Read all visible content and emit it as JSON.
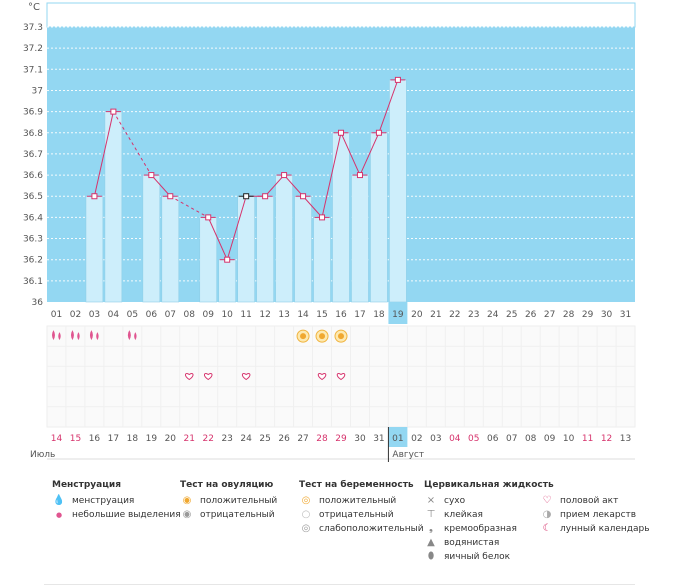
{
  "chart_data": {
    "type": "bar",
    "unit_label": "°C",
    "y_ticks": [
      "37.3",
      "37.2",
      "37.1",
      "37",
      "36.9",
      "36.8",
      "36.7",
      "36.6",
      "36.5",
      "36.4",
      "36.3",
      "36.2",
      "36.1",
      "36"
    ],
    "ylim": [
      36,
      37.3
    ],
    "cycle_days": [
      "01",
      "02",
      "03",
      "04",
      "05",
      "06",
      "07",
      "08",
      "09",
      "10",
      "11",
      "12",
      "13",
      "14",
      "15",
      "16",
      "17",
      "18",
      "19",
      "20",
      "21",
      "22",
      "23",
      "24",
      "25",
      "26",
      "27",
      "28",
      "29",
      "30",
      "31"
    ],
    "highlighted_day": "19",
    "temperatures": [
      null,
      null,
      36.5,
      36.9,
      null,
      36.6,
      36.5,
      null,
      36.4,
      36.2,
      36.5,
      36.5,
      36.6,
      36.5,
      36.4,
      36.8,
      36.6,
      36.8,
      37.05,
      null,
      null,
      null,
      null,
      null,
      null,
      null,
      null,
      null,
      null,
      null,
      null
    ],
    "black_marker_day": "11",
    "calendar_dates": [
      "14",
      "15",
      "16",
      "17",
      "18",
      "19",
      "20",
      "21",
      "22",
      "23",
      "24",
      "25",
      "26",
      "27",
      "28",
      "29",
      "30",
      "31",
      "01",
      "02",
      "03",
      "04",
      "05",
      "06",
      "07",
      "08",
      "09",
      "10",
      "11",
      "12",
      "13"
    ],
    "weekend_dates": [
      0,
      1,
      7,
      8,
      14,
      15,
      21,
      22,
      28,
      29
    ],
    "highlighted_date_index": 18,
    "month_labels": [
      {
        "text": "Июль",
        "col": 0
      },
      {
        "text": "Август",
        "col": 18
      }
    ],
    "menstruation_rows": {
      "large": [
        0,
        1,
        2
      ],
      "small": [
        4
      ]
    },
    "ovulation_positive": [
      13,
      14,
      15
    ],
    "intercourse": [
      7,
      8,
      10,
      14,
      15
    ],
    "colors": {
      "sky": "#93d7f2",
      "bar": "#cdeefb",
      "bar_border": "#8fcfe8",
      "line": "#d6336c",
      "grid_dots": "#ffffff",
      "weekend": "#d6336c",
      "highlight": "#93d7f2"
    }
  },
  "legend": {
    "menstruation": {
      "title": "Менструация",
      "items": [
        {
          "icon": "drop-large-icon",
          "label": "менструация"
        },
        {
          "icon": "drop-small-icon",
          "label": "небольшие выделения"
        }
      ]
    },
    "ovulation": {
      "title": "Тест на овуляцию",
      "items": [
        {
          "icon": "sun-positive-icon",
          "label": "положительный"
        },
        {
          "icon": "sun-negative-icon",
          "label": "отрицательный"
        }
      ]
    },
    "pregnancy": {
      "title": "Тест на беременность",
      "items": [
        {
          "icon": "preg-positive-icon",
          "label": "положительный"
        },
        {
          "icon": "preg-negative-icon",
          "label": "отрицательный"
        },
        {
          "icon": "preg-weak-icon",
          "label": "слабоположительный"
        }
      ]
    },
    "cervical": {
      "title": "Цервикальная жидкость",
      "items": [
        {
          "icon": "dry-icon",
          "label": "сухо"
        },
        {
          "icon": "sticky-icon",
          "label": "клейкая"
        },
        {
          "icon": "creamy-icon",
          "label": "кремообразная"
        },
        {
          "icon": "watery-icon",
          "label": "водянистая"
        },
        {
          "icon": "eggwhite-icon",
          "label": "яичный белок"
        }
      ]
    },
    "other": {
      "items": [
        {
          "icon": "heart-icon",
          "label": "половой акт"
        },
        {
          "icon": "pill-icon",
          "label": "прием лекарств"
        },
        {
          "icon": "moon-icon",
          "label": "лунный календарь"
        }
      ]
    }
  }
}
